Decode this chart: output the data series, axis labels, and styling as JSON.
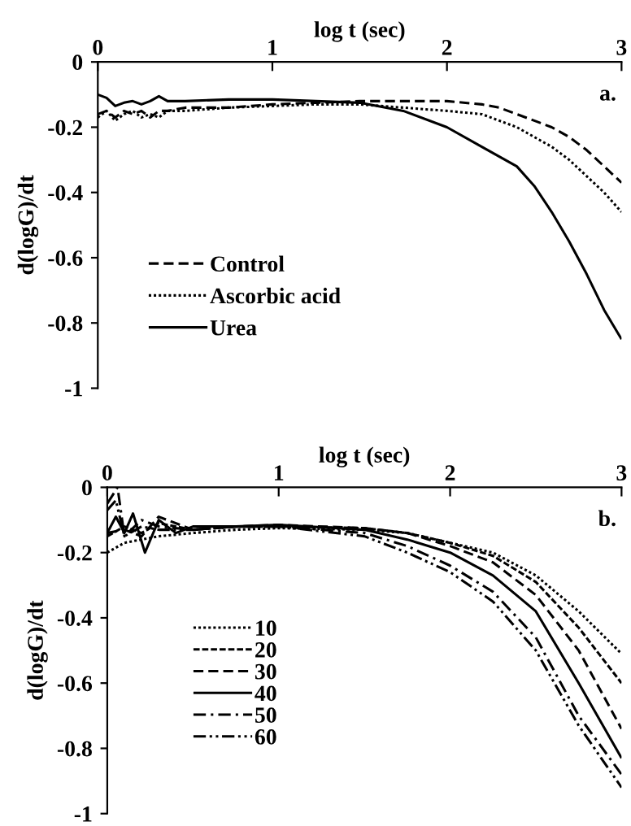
{
  "chart_data": [
    {
      "type": "line",
      "xlabel": "log t (sec)",
      "ylabel": "d(logG)/dt",
      "annotations": [
        "a."
      ],
      "xlim": [
        0,
        3
      ],
      "ylim": [
        -1,
        0
      ],
      "xticks": [
        0,
        1,
        2,
        3
      ],
      "yticks": [
        0,
        -0.2,
        -0.4,
        -0.6,
        -0.8,
        -1
      ],
      "legend": "lower left",
      "grid": false,
      "series": [
        {
          "name": "Control",
          "color": "#000000",
          "line_style": "dashed",
          "x": [
            0,
            0.05,
            0.1,
            0.15,
            0.2,
            0.25,
            0.3,
            0.35,
            0.4,
            0.5,
            0.75,
            1,
            1.25,
            1.5,
            1.75,
            2,
            2.2,
            2.3,
            2.4,
            2.5,
            2.6,
            2.7,
            2.8,
            2.9,
            3
          ],
          "values": [
            -0.16,
            -0.15,
            -0.17,
            -0.15,
            -0.16,
            -0.15,
            -0.17,
            -0.15,
            -0.15,
            -0.14,
            -0.14,
            -0.13,
            -0.125,
            -0.12,
            -0.12,
            -0.12,
            -0.13,
            -0.14,
            -0.16,
            -0.18,
            -0.2,
            -0.23,
            -0.27,
            -0.32,
            -0.37
          ]
        },
        {
          "name": "Ascorbic acid",
          "color": "#000000",
          "line_style": "dotted",
          "x": [
            0,
            0.05,
            0.1,
            0.15,
            0.2,
            0.25,
            0.3,
            0.35,
            0.4,
            0.5,
            0.75,
            1,
            1.25,
            1.5,
            1.75,
            2,
            2.2,
            2.3,
            2.4,
            2.5,
            2.6,
            2.7,
            2.8,
            2.9,
            3
          ],
          "values": [
            -0.17,
            -0.15,
            -0.18,
            -0.16,
            -0.15,
            -0.17,
            -0.16,
            -0.17,
            -0.15,
            -0.15,
            -0.14,
            -0.135,
            -0.13,
            -0.13,
            -0.14,
            -0.15,
            -0.16,
            -0.18,
            -0.2,
            -0.23,
            -0.26,
            -0.3,
            -0.35,
            -0.4,
            -0.46
          ]
        },
        {
          "name": "Urea",
          "color": "#000000",
          "line_style": "solid",
          "x": [
            0,
            0.05,
            0.1,
            0.15,
            0.2,
            0.25,
            0.3,
            0.35,
            0.4,
            0.5,
            0.75,
            1,
            1.25,
            1.5,
            1.75,
            2,
            2.2,
            2.4,
            2.5,
            2.6,
            2.7,
            2.8,
            2.9,
            3
          ],
          "values": [
            -0.1,
            -0.11,
            -0.135,
            -0.125,
            -0.12,
            -0.13,
            -0.12,
            -0.105,
            -0.12,
            -0.12,
            -0.115,
            -0.115,
            -0.12,
            -0.125,
            -0.15,
            -0.2,
            -0.26,
            -0.32,
            -0.38,
            -0.46,
            -0.55,
            -0.65,
            -0.76,
            -0.85
          ]
        }
      ]
    },
    {
      "type": "line",
      "xlabel": "log t (sec)",
      "ylabel": "d(logG)/dt",
      "annotations": [
        "b."
      ],
      "xlim": [
        0,
        3
      ],
      "ylim": [
        -1,
        0
      ],
      "xticks": [
        0,
        1,
        2,
        3
      ],
      "yticks": [
        0,
        -0.2,
        -0.4,
        -0.6,
        -0.8,
        -1
      ],
      "legend": "lower left",
      "grid": false,
      "series": [
        {
          "name": "10",
          "color": "#000000",
          "line_style": "dotted",
          "x": [
            0,
            0.1,
            0.2,
            0.3,
            0.5,
            0.75,
            1,
            1.5,
            1.75,
            2,
            2.25,
            2.5,
            2.75,
            3
          ],
          "values": [
            -0.2,
            -0.17,
            -0.16,
            -0.15,
            -0.14,
            -0.13,
            -0.125,
            -0.13,
            -0.14,
            -0.17,
            -0.2,
            -0.27,
            -0.38,
            -0.51
          ]
        },
        {
          "name": "20",
          "color": "#000000",
          "line_style": "densedash",
          "x": [
            0,
            0.1,
            0.2,
            0.3,
            0.5,
            0.75,
            1,
            1.5,
            1.75,
            2,
            2.25,
            2.5,
            2.75,
            3
          ],
          "values": [
            -0.15,
            -0.12,
            -0.14,
            -0.11,
            -0.13,
            -0.12,
            -0.12,
            -0.125,
            -0.14,
            -0.17,
            -0.21,
            -0.29,
            -0.43,
            -0.6
          ]
        },
        {
          "name": "30",
          "color": "#000000",
          "line_style": "dashed",
          "x": [
            0,
            0.1,
            0.2,
            0.3,
            0.5,
            0.75,
            1,
            1.5,
            1.75,
            2,
            2.25,
            2.5,
            2.75,
            3
          ],
          "values": [
            -0.14,
            -0.13,
            -0.15,
            -0.09,
            -0.13,
            -0.12,
            -0.115,
            -0.125,
            -0.14,
            -0.18,
            -0.23,
            -0.33,
            -0.5,
            -0.74
          ]
        },
        {
          "name": "40",
          "color": "#000000",
          "line_style": "solid",
          "x": [
            0,
            0.05,
            0.1,
            0.15,
            0.22,
            0.3,
            0.4,
            0.5,
            0.75,
            1,
            1.5,
            1.75,
            2,
            2.25,
            2.5,
            2.75,
            3
          ],
          "values": [
            -0.14,
            -0.09,
            -0.14,
            -0.08,
            -0.2,
            -0.1,
            -0.14,
            -0.12,
            -0.12,
            -0.115,
            -0.13,
            -0.16,
            -0.2,
            -0.27,
            -0.38,
            -0.6,
            -0.83
          ]
        },
        {
          "name": "50",
          "color": "#000000",
          "line_style": "dashdot",
          "x": [
            0,
            0.06,
            0.1,
            0.2,
            0.3,
            0.5,
            0.75,
            1,
            1.5,
            1.75,
            2,
            2.25,
            2.5,
            2.75,
            3
          ],
          "values": [
            -0.05,
            0,
            -0.15,
            -0.1,
            -0.12,
            -0.13,
            -0.12,
            -0.12,
            -0.14,
            -0.18,
            -0.24,
            -0.32,
            -0.46,
            -0.7,
            -0.88
          ]
        },
        {
          "name": "60",
          "color": "#000000",
          "line_style": "dashdotdot",
          "x": [
            0,
            0.05,
            0.1,
            0.2,
            0.3,
            0.5,
            0.75,
            1,
            1.5,
            1.75,
            2,
            2.25,
            2.5,
            2.75,
            3
          ],
          "values": [
            -0.07,
            -0.04,
            -0.15,
            -0.12,
            -0.13,
            -0.13,
            -0.12,
            -0.12,
            -0.15,
            -0.2,
            -0.26,
            -0.35,
            -0.5,
            -0.73,
            -0.92
          ]
        }
      ]
    }
  ]
}
